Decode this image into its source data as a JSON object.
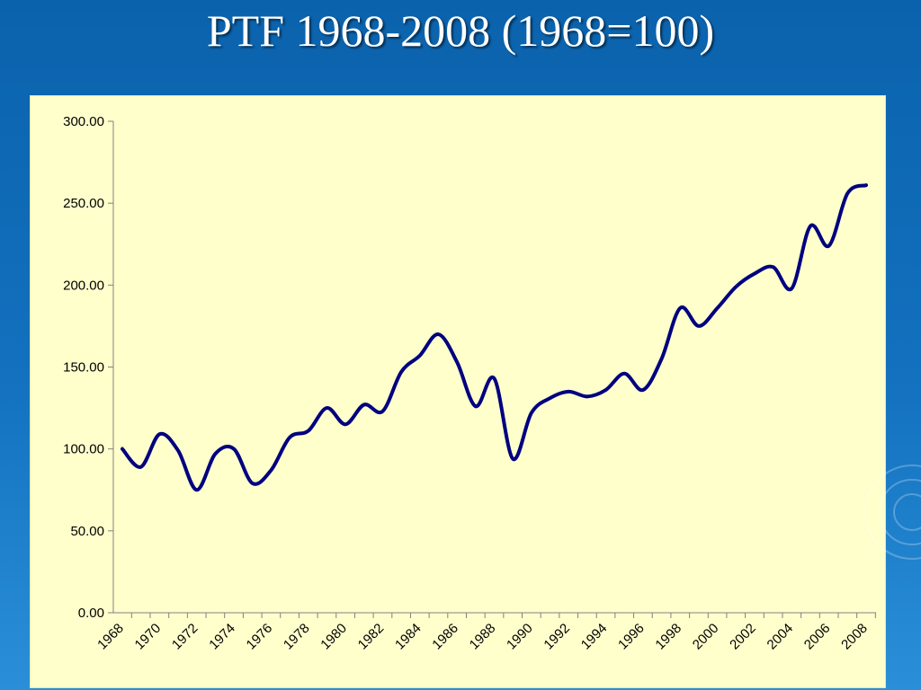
{
  "slide": {
    "title": "PTF 1968-2008 (1968=100)"
  },
  "colors": {
    "background": "#0b62ac",
    "plot_area": "#ffffcc",
    "line": "#000080",
    "title": "#ffffff"
  },
  "chart_data": {
    "type": "line",
    "title": "PTF 1968-2008 (1968=100)",
    "xlabel": "",
    "ylabel": "",
    "x": [
      1968,
      1969,
      1970,
      1971,
      1972,
      1973,
      1974,
      1975,
      1976,
      1977,
      1978,
      1979,
      1980,
      1981,
      1982,
      1983,
      1984,
      1985,
      1986,
      1987,
      1988,
      1989,
      1990,
      1991,
      1992,
      1993,
      1994,
      1995,
      1996,
      1997,
      1998,
      1999,
      2000,
      2001,
      2002,
      2003,
      2004,
      2005,
      2006,
      2007,
      2008
    ],
    "series": [
      {
        "values": [
          100,
          89,
          109,
          99,
          75,
          97,
          100,
          79,
          87,
          107,
          111,
          125,
          115,
          127,
          123,
          147,
          157,
          170,
          153,
          126,
          143,
          94,
          122,
          131,
          135,
          132,
          136,
          146,
          136,
          155,
          186,
          175,
          186,
          199,
          207,
          211,
          198,
          236,
          224,
          256,
          261
        ]
      }
    ],
    "ylim": [
      0,
      300
    ],
    "yticks": [
      0,
      50,
      100,
      150,
      200,
      250,
      300
    ],
    "ytick_labels": [
      "0.00",
      "50.00",
      "100.00",
      "150.00",
      "200.00",
      "250.00",
      "300.00"
    ],
    "xtick_labels": [
      "1968",
      "1970",
      "1972",
      "1974",
      "1976",
      "1978",
      "1980",
      "1982",
      "1984",
      "1986",
      "1988",
      "1990",
      "1992",
      "1994",
      "1996",
      "1998",
      "2000",
      "2002",
      "2004",
      "2006",
      "2008"
    ],
    "grid": false,
    "legend": "none"
  }
}
